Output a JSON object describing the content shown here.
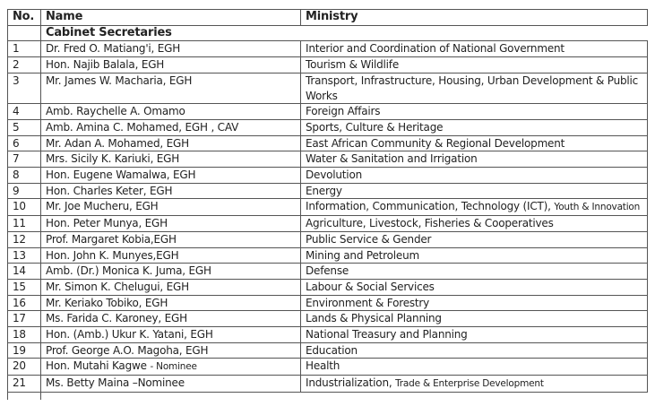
{
  "headers": {
    "no": "No.",
    "name": "Name",
    "ministry": "Ministry"
  },
  "section_title": "Cabinet Secretaries",
  "rows": [
    {
      "no": "1",
      "name": "Dr. Fred O. Matiang'i, EGH",
      "name_note": "",
      "ministry": "Interior and Coordination of National Government",
      "ministry_small": ""
    },
    {
      "no": "2",
      "name": "Hon. Najib Balala, EGH",
      "name_note": "",
      "ministry": "Tourism & Wildlife",
      "ministry_small": ""
    },
    {
      "no": "3",
      "name": "Mr. James W. Macharia, EGH",
      "name_note": "",
      "ministry": "Transport, Infrastructure, Housing, Urban Development & Public Works",
      "ministry_small": ""
    },
    {
      "no": "4",
      "name": "Amb. Raychelle A. Omamo",
      "name_note": "",
      "ministry": "Foreign Affairs",
      "ministry_small": ""
    },
    {
      "no": "5",
      "name": "Amb. Amina C. Mohamed, EGH , CAV",
      "name_note": "",
      "ministry": "Sports, Culture & Heritage",
      "ministry_small": ""
    },
    {
      "no": "6",
      "name": "Mr. Adan A. Mohamed, EGH",
      "name_note": "",
      "ministry": "East African Community & Regional Development",
      "ministry_small": ""
    },
    {
      "no": "7",
      "name": "Mrs. Sicily K. Kariuki, EGH",
      "name_note": "",
      "ministry": "Water & Sanitation and Irrigation",
      "ministry_small": ""
    },
    {
      "no": "8",
      "name": "Hon. Eugene Wamalwa, EGH",
      "name_note": "",
      "ministry": "Devolution",
      "ministry_small": ""
    },
    {
      "no": "9",
      "name": "Hon. Charles Keter, EGH",
      "name_note": "",
      "ministry": "Energy",
      "ministry_small": ""
    },
    {
      "no": "10",
      "name": "Mr. Joe Mucheru, EGH",
      "name_note": "",
      "ministry": "Information, Communication, Technology (ICT),",
      "ministry_small": "Youth & Innovation"
    },
    {
      "no": "11",
      "name": "Hon. Peter Munya, EGH",
      "name_note": "",
      "ministry": "Agriculture, Livestock, Fisheries & Cooperatives",
      "ministry_small": ""
    },
    {
      "no": "12",
      "name": "Prof. Margaret Kobia,EGH",
      "name_note": "",
      "ministry": "Public Service & Gender",
      "ministry_small": ""
    },
    {
      "no": "13",
      "name": "Hon. John K. Munyes,EGH",
      "name_note": "",
      "ministry": "Mining and Petroleum",
      "ministry_small": ""
    },
    {
      "no": "14",
      "name": "Amb. (Dr.) Monica K. Juma, EGH",
      "name_note": "",
      "ministry": "Defense",
      "ministry_small": ""
    },
    {
      "no": "15",
      "name": "Mr. Simon K. Chelugui, EGH",
      "name_note": "",
      "ministry": "Labour & Social Services",
      "ministry_small": ""
    },
    {
      "no": "16",
      "name": "Mr. Keriako Tobiko, EGH",
      "name_note": "",
      "ministry": "Environment & Forestry",
      "ministry_small": ""
    },
    {
      "no": "17",
      "name": "Ms. Farida C. Karoney, EGH",
      "name_note": "",
      "ministry": "Lands & Physical Planning",
      "ministry_small": ""
    },
    {
      "no": "18",
      "name": "Hon. (Amb.) Ukur K. Yatani, EGH",
      "name_note": "",
      "ministry": "National Treasury and Planning",
      "ministry_small": ""
    },
    {
      "no": "19",
      "name": "Prof. George A.O. Magoha, EGH",
      "name_note": "",
      "ministry": "Education",
      "ministry_small": ""
    },
    {
      "no": "20",
      "name": "Hon. Mutahi Kagwe",
      "name_note": "- Nominee",
      "ministry": "Health",
      "ministry_small": ""
    },
    {
      "no": "21",
      "name": "Ms. Betty Maina –Nominee",
      "name_note": "",
      "ministry": "Industrialization,",
      "ministry_small": "Trade & Enterprise Development"
    }
  ]
}
